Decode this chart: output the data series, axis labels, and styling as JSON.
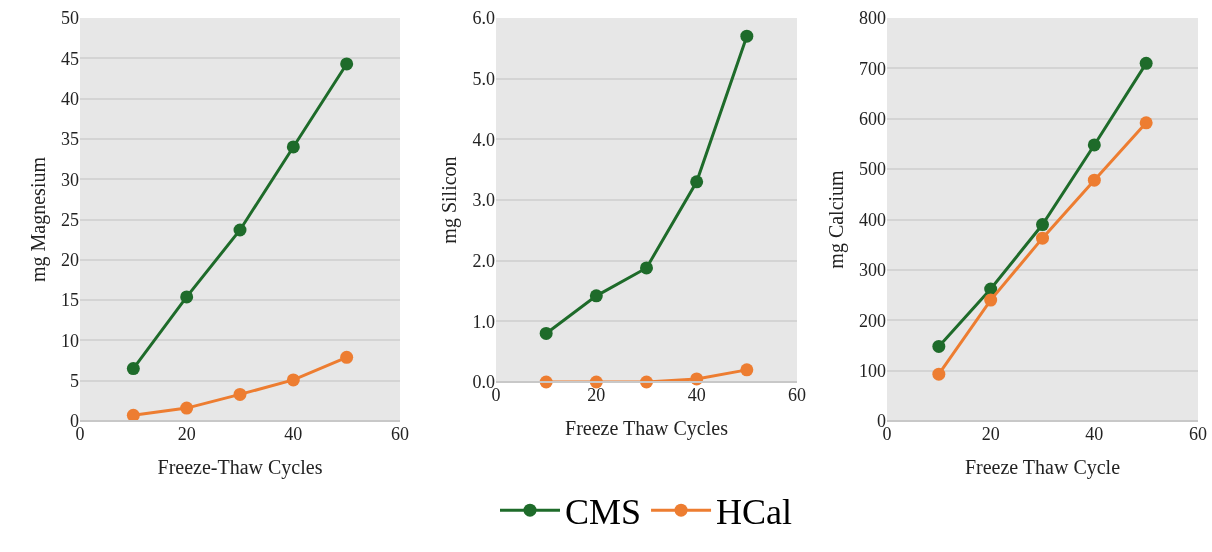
{
  "chart_data": [
    {
      "type": "line",
      "xlabel": "Freeze-Thaw Cycles",
      "ylabel": "mg Magnesium",
      "x": [
        10,
        20,
        30,
        40,
        50
      ],
      "xlim": [
        0,
        60
      ],
      "xticks": [
        0,
        20,
        40,
        60
      ],
      "ylim": [
        0,
        50
      ],
      "yticks": [
        0,
        5,
        10,
        15,
        20,
        25,
        30,
        35,
        40,
        45,
        50
      ],
      "grid": "y",
      "marker": "circle",
      "legend": false,
      "series": [
        {
          "color": "#1e6b2a",
          "values": [
            6.5,
            15.4,
            23.7,
            34,
            44.3
          ]
        },
        {
          "color": "#ed7d31",
          "values": [
            0.7,
            1.6,
            3.3,
            5.1,
            7.9
          ]
        }
      ]
    },
    {
      "type": "line",
      "xlabel": "Freeze Thaw Cycles",
      "ylabel": "mg Silicon",
      "x": [
        10,
        20,
        30,
        40,
        50
      ],
      "xlim": [
        0,
        60
      ],
      "xticks": [
        0,
        20,
        40,
        60
      ],
      "ylim": [
        0,
        6
      ],
      "yticks": [
        {
          "value": 0,
          "label": "0.0"
        },
        {
          "value": 1,
          "label": "1.0"
        },
        {
          "value": 2,
          "label": "2.0"
        },
        {
          "value": 3,
          "label": "3.0"
        },
        {
          "value": 4,
          "label": "4.0"
        },
        {
          "value": 5,
          "label": "5.0"
        },
        {
          "value": 6,
          "label": "6.0"
        }
      ],
      "grid": "y",
      "marker": "circle",
      "legend": "bottom",
      "series": [
        {
          "name": "CMS",
          "color": "#1e6b2a",
          "values": [
            0.8,
            1.42,
            1.88,
            3.3,
            5.7
          ]
        },
        {
          "name": "HCal",
          "color": "#ed7d31",
          "values": [
            0,
            0,
            0,
            0.05,
            0.2
          ]
        }
      ]
    },
    {
      "type": "line",
      "xlabel": "Freeze Thaw Cycle",
      "ylabel": "mg Calcium",
      "x": [
        10,
        20,
        30,
        40,
        50
      ],
      "xlim": [
        0,
        60
      ],
      "xticks": [
        0,
        20,
        40,
        60
      ],
      "ylim": [
        0,
        800
      ],
      "yticks": [
        0,
        100,
        200,
        300,
        400,
        500,
        600,
        700,
        800
      ],
      "grid": "y",
      "marker": "circle",
      "legend": false,
      "series": [
        {
          "color": "#1e6b2a",
          "values": [
            148,
            262,
            390,
            548,
            710
          ]
        },
        {
          "color": "#ed7d31",
          "values": [
            93,
            240,
            363,
            478,
            592
          ]
        }
      ]
    }
  ]
}
